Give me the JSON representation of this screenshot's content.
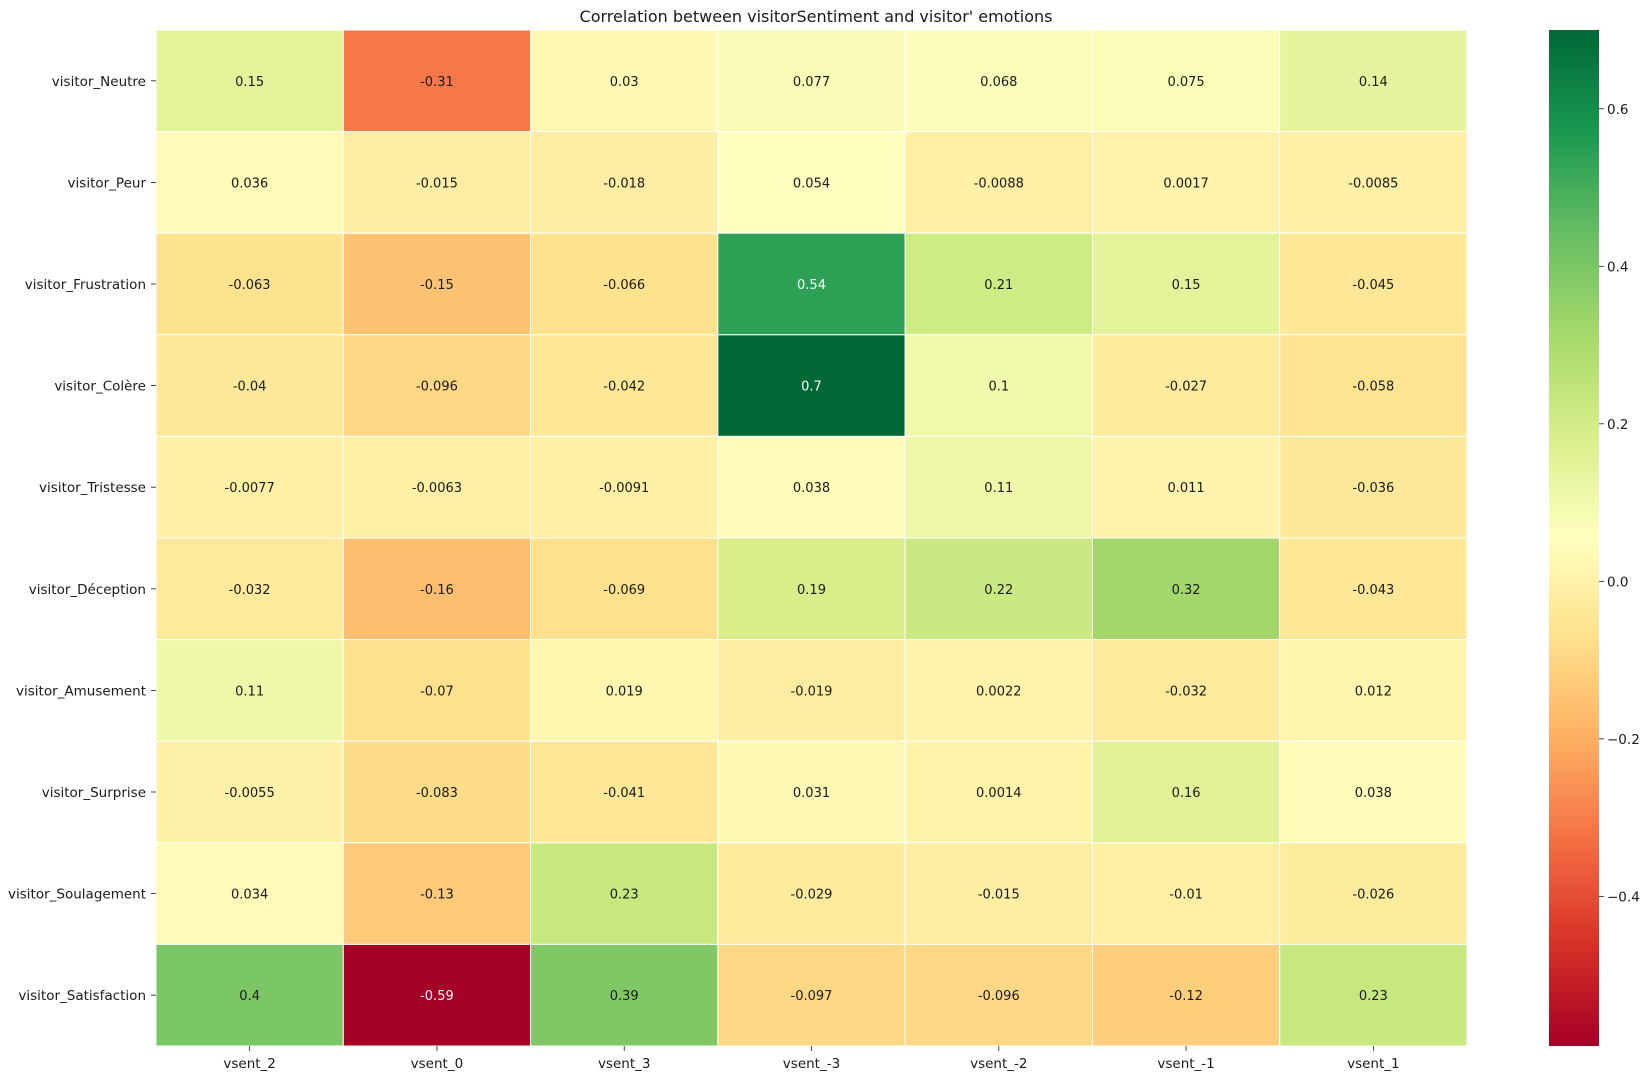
{
  "chart_data": {
    "type": "heatmap",
    "title": "Correlation between visitorSentiment and visitor' emotions",
    "xlabel": "",
    "ylabel": "",
    "columns": [
      "vsent_2",
      "vsent_0",
      "vsent_3",
      "vsent_-3",
      "vsent_-2",
      "vsent_-1",
      "vsent_1"
    ],
    "rows": [
      "visitor_Neutre",
      "visitor_Peur",
      "visitor_Frustration",
      "visitor_Colère",
      "visitor_Tristesse",
      "visitor_Déception",
      "visitor_Amusement",
      "visitor_Surprise",
      "visitor_Soulagement",
      "visitor_Satisfaction"
    ],
    "values": [
      [
        0.15,
        -0.31,
        0.03,
        0.077,
        0.068,
        0.075,
        0.14
      ],
      [
        0.036,
        -0.015,
        -0.018,
        0.054,
        -0.0088,
        0.0017,
        -0.0085
      ],
      [
        -0.063,
        -0.15,
        -0.066,
        0.54,
        0.21,
        0.15,
        -0.045
      ],
      [
        -0.04,
        -0.096,
        -0.042,
        0.7,
        0.1,
        -0.027,
        -0.058
      ],
      [
        -0.0077,
        -0.0063,
        -0.0091,
        0.038,
        0.11,
        0.011,
        -0.036
      ],
      [
        -0.032,
        -0.16,
        -0.069,
        0.19,
        0.22,
        0.32,
        -0.043
      ],
      [
        0.11,
        -0.07,
        0.019,
        -0.019,
        0.0022,
        -0.032,
        0.012
      ],
      [
        -0.0055,
        -0.083,
        -0.041,
        0.031,
        0.0014,
        0.16,
        0.038
      ],
      [
        0.034,
        -0.13,
        0.23,
        -0.029,
        -0.015,
        -0.01,
        -0.026
      ],
      [
        0.4,
        -0.59,
        0.39,
        -0.097,
        -0.096,
        -0.12,
        0.23
      ]
    ],
    "colormap": "RdYlGn",
    "vmin": -0.59,
    "vmax": 0.7,
    "colorbar_ticks": [
      -0.4,
      -0.2,
      0.0,
      0.2,
      0.4,
      0.6
    ],
    "colorbar_tick_labels": [
      "−0.4",
      "−0.2",
      "0.0",
      "0.2",
      "0.4",
      "0.6"
    ],
    "legend": "colorbar-right",
    "grid": false
  }
}
